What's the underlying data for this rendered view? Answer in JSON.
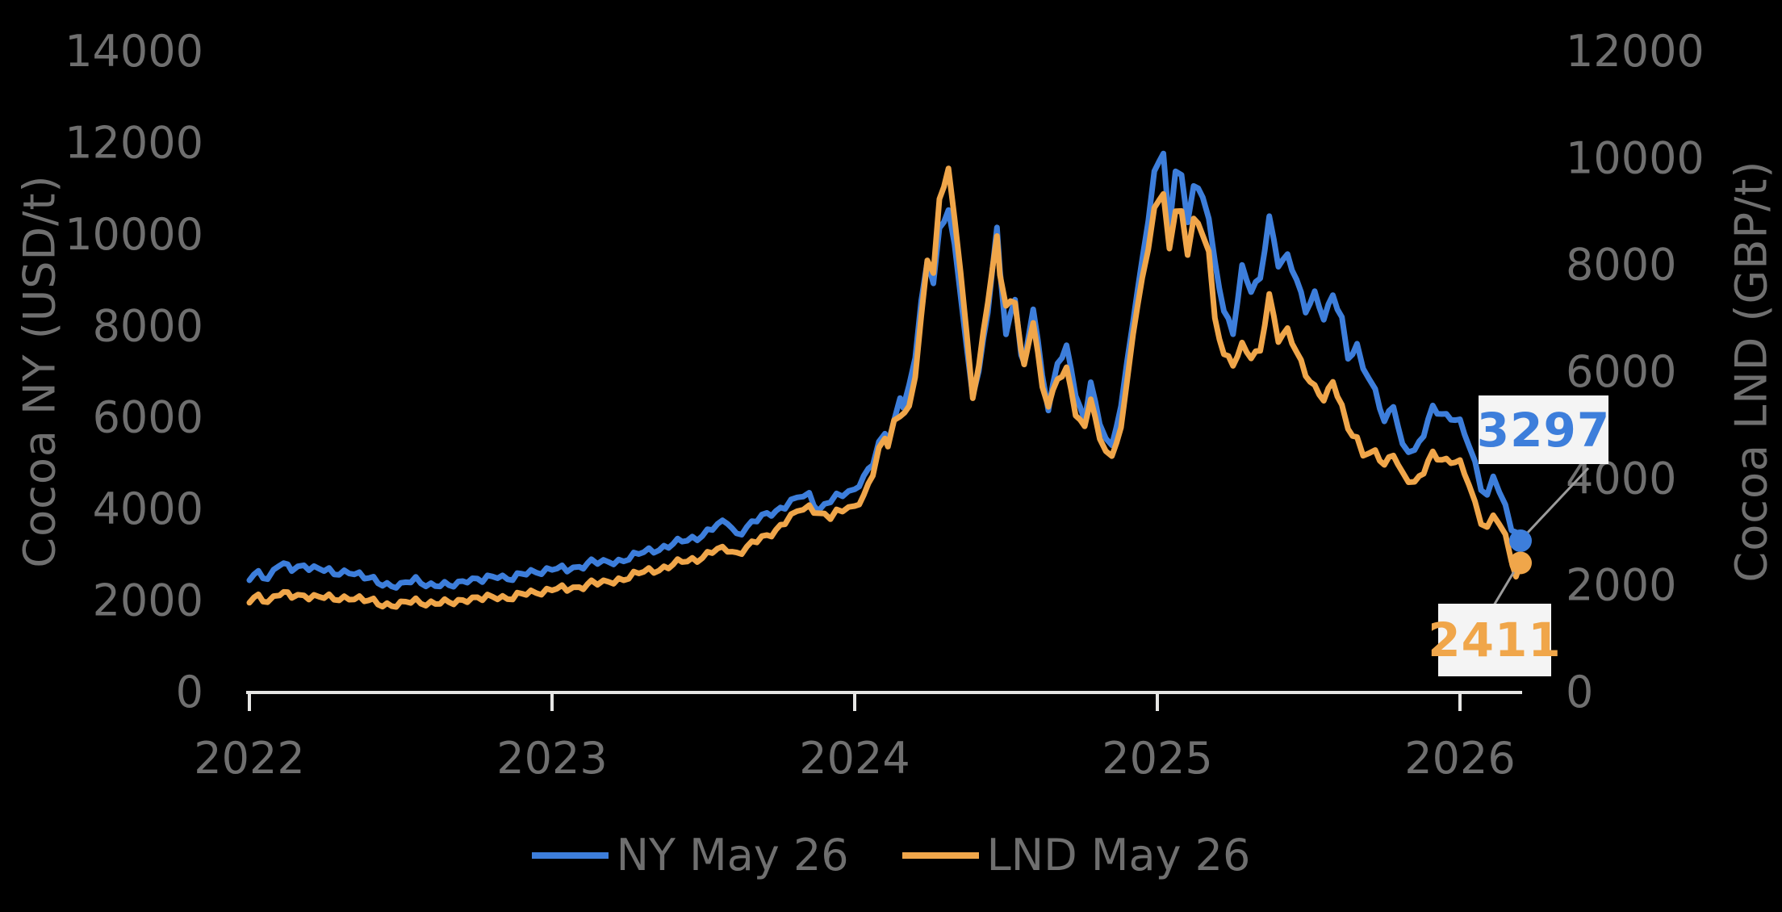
{
  "chart_data": {
    "type": "line",
    "background": "#000000",
    "grid": false,
    "legend_position": "bottom",
    "left_axis": {
      "label": "Cocoa NY (USD/t)",
      "min": 0,
      "max": 14000,
      "ticks": [
        0,
        2000,
        4000,
        6000,
        8000,
        10000,
        12000,
        14000
      ]
    },
    "right_axis": {
      "label": "Cocoa LND (GBP/t)",
      "min": 0,
      "max": 12000,
      "ticks": [
        0,
        2000,
        4000,
        6000,
        8000,
        10000,
        12000
      ]
    },
    "x_axis": {
      "min": 2022.0,
      "max": 2026.2,
      "ticks": [
        2022,
        2023,
        2024,
        2025,
        2026
      ]
    },
    "series": [
      {
        "name": "NY May 26",
        "axis": "left",
        "color": "#3d7edb",
        "last_value": 3297,
        "points": [
          [
            2022.0,
            2450
          ],
          [
            2022.03,
            2580
          ],
          [
            2022.06,
            2510
          ],
          [
            2022.1,
            2810
          ],
          [
            2022.14,
            2640
          ],
          [
            2022.18,
            2780
          ],
          [
            2022.23,
            2690
          ],
          [
            2022.28,
            2560
          ],
          [
            2022.33,
            2660
          ],
          [
            2022.38,
            2480
          ],
          [
            2022.44,
            2380
          ],
          [
            2022.5,
            2300
          ],
          [
            2022.55,
            2450
          ],
          [
            2022.6,
            2340
          ],
          [
            2022.66,
            2290
          ],
          [
            2022.72,
            2480
          ],
          [
            2022.77,
            2410
          ],
          [
            2022.82,
            2550
          ],
          [
            2022.87,
            2480
          ],
          [
            2022.93,
            2600
          ],
          [
            2023.0,
            2700
          ],
          [
            2023.05,
            2640
          ],
          [
            2023.09,
            2760
          ],
          [
            2023.13,
            2840
          ],
          [
            2023.17,
            2790
          ],
          [
            2023.22,
            2870
          ],
          [
            2023.27,
            2960
          ],
          [
            2023.32,
            3070
          ],
          [
            2023.37,
            3170
          ],
          [
            2023.43,
            3270
          ],
          [
            2023.48,
            3390
          ],
          [
            2023.53,
            3560
          ],
          [
            2023.58,
            3720
          ],
          [
            2023.61,
            3450
          ],
          [
            2023.66,
            3660
          ],
          [
            2023.71,
            3880
          ],
          [
            2023.77,
            4060
          ],
          [
            2023.81,
            4210
          ],
          [
            2023.85,
            4320
          ],
          [
            2023.88,
            3990
          ],
          [
            2023.92,
            4160
          ],
          [
            2023.96,
            4300
          ],
          [
            2024.0,
            4460
          ],
          [
            2024.03,
            4680
          ],
          [
            2024.06,
            4970
          ],
          [
            2024.08,
            5380
          ],
          [
            2024.1,
            5670
          ],
          [
            2024.11,
            5490
          ],
          [
            2024.13,
            5910
          ],
          [
            2024.15,
            6480
          ],
          [
            2024.16,
            6260
          ],
          [
            2024.18,
            6610
          ],
          [
            2024.2,
            7300
          ],
          [
            2024.22,
            8500
          ],
          [
            2024.24,
            9430
          ],
          [
            2024.26,
            8990
          ],
          [
            2024.28,
            10100
          ],
          [
            2024.31,
            10500
          ],
          [
            2024.33,
            9700
          ],
          [
            2024.35,
            8700
          ],
          [
            2024.37,
            7500
          ],
          [
            2024.39,
            6540
          ],
          [
            2024.41,
            7000
          ],
          [
            2024.44,
            8300
          ],
          [
            2024.47,
            10060
          ],
          [
            2024.48,
            9200
          ],
          [
            2024.5,
            7860
          ],
          [
            2024.53,
            8620
          ],
          [
            2024.55,
            7360
          ],
          [
            2024.56,
            7110
          ],
          [
            2024.59,
            8370
          ],
          [
            2024.62,
            6900
          ],
          [
            2024.64,
            6230
          ],
          [
            2024.67,
            7180
          ],
          [
            2024.7,
            7490
          ],
          [
            2024.73,
            6500
          ],
          [
            2024.76,
            5910
          ],
          [
            2024.78,
            6860
          ],
          [
            2024.81,
            5800
          ],
          [
            2024.85,
            5290
          ],
          [
            2024.88,
            6300
          ],
          [
            2024.9,
            7200
          ],
          [
            2024.92,
            8180
          ],
          [
            2024.95,
            9370
          ],
          [
            2024.97,
            10300
          ],
          [
            2024.99,
            11300
          ],
          [
            2025.02,
            11850
          ],
          [
            2025.04,
            10100
          ],
          [
            2025.06,
            11420
          ],
          [
            2025.08,
            11240
          ],
          [
            2025.1,
            10200
          ],
          [
            2025.12,
            11070
          ],
          [
            2025.15,
            10840
          ],
          [
            2025.17,
            10400
          ],
          [
            2025.19,
            9370
          ],
          [
            2025.22,
            8280
          ],
          [
            2025.25,
            7830
          ],
          [
            2025.28,
            9300
          ],
          [
            2025.31,
            8800
          ],
          [
            2025.34,
            8990
          ],
          [
            2025.37,
            10320
          ],
          [
            2025.4,
            9370
          ],
          [
            2025.43,
            9550
          ],
          [
            2025.46,
            8990
          ],
          [
            2025.49,
            8280
          ],
          [
            2025.52,
            8700
          ],
          [
            2025.55,
            8210
          ],
          [
            2025.58,
            8660
          ],
          [
            2025.61,
            8100
          ],
          [
            2025.63,
            7260
          ],
          [
            2025.66,
            7580
          ],
          [
            2025.68,
            7130
          ],
          [
            2025.72,
            6560
          ],
          [
            2025.75,
            5850
          ],
          [
            2025.78,
            6290
          ],
          [
            2025.81,
            5400
          ],
          [
            2025.85,
            5210
          ],
          [
            2025.88,
            5600
          ],
          [
            2025.91,
            6230
          ],
          [
            2025.94,
            6100
          ],
          [
            2025.97,
            5980
          ],
          [
            2026.0,
            5850
          ],
          [
            2026.03,
            5400
          ],
          [
            2026.05,
            5010
          ],
          [
            2026.07,
            4500
          ],
          [
            2026.09,
            4260
          ],
          [
            2026.11,
            4700
          ],
          [
            2026.13,
            4320
          ],
          [
            2026.15,
            4030
          ],
          [
            2026.17,
            3600
          ],
          [
            2026.19,
            3450
          ],
          [
            2026.2,
            3297
          ]
        ]
      },
      {
        "name": "LND May 26",
        "axis": "right",
        "color": "#f0a64a",
        "last_value": 2411,
        "points": [
          [
            2022.0,
            1680
          ],
          [
            2022.03,
            1770
          ],
          [
            2022.06,
            1720
          ],
          [
            2022.1,
            1850
          ],
          [
            2022.14,
            1760
          ],
          [
            2022.18,
            1820
          ],
          [
            2022.23,
            1780
          ],
          [
            2022.28,
            1720
          ],
          [
            2022.33,
            1790
          ],
          [
            2022.38,
            1700
          ],
          [
            2022.44,
            1650
          ],
          [
            2022.5,
            1625
          ],
          [
            2022.55,
            1700
          ],
          [
            2022.6,
            1665
          ],
          [
            2022.66,
            1645
          ],
          [
            2022.72,
            1760
          ],
          [
            2022.77,
            1725
          ],
          [
            2022.82,
            1790
          ],
          [
            2022.87,
            1765
          ],
          [
            2022.93,
            1845
          ],
          [
            2023.0,
            1930
          ],
          [
            2023.05,
            1900
          ],
          [
            2023.09,
            1985
          ],
          [
            2023.13,
            2040
          ],
          [
            2023.17,
            2010
          ],
          [
            2023.22,
            2110
          ],
          [
            2023.27,
            2180
          ],
          [
            2023.32,
            2260
          ],
          [
            2023.37,
            2330
          ],
          [
            2023.43,
            2420
          ],
          [
            2023.48,
            2500
          ],
          [
            2023.53,
            2620
          ],
          [
            2023.58,
            2665
          ],
          [
            2023.61,
            2600
          ],
          [
            2023.66,
            2760
          ],
          [
            2023.71,
            2910
          ],
          [
            2023.77,
            3190
          ],
          [
            2023.81,
            3350
          ],
          [
            2023.85,
            3470
          ],
          [
            2023.88,
            3380
          ],
          [
            2023.92,
            3250
          ],
          [
            2023.96,
            3400
          ],
          [
            2024.0,
            3510
          ],
          [
            2024.03,
            3650
          ],
          [
            2024.06,
            4060
          ],
          [
            2024.08,
            4500
          ],
          [
            2024.1,
            4770
          ],
          [
            2024.11,
            4660
          ],
          [
            2024.13,
            5070
          ],
          [
            2024.15,
            5210
          ],
          [
            2024.18,
            5270
          ],
          [
            2024.2,
            5900
          ],
          [
            2024.22,
            7000
          ],
          [
            2024.24,
            8100
          ],
          [
            2024.26,
            7900
          ],
          [
            2024.28,
            9200
          ],
          [
            2024.31,
            9780
          ],
          [
            2024.33,
            8800
          ],
          [
            2024.35,
            7900
          ],
          [
            2024.37,
            6700
          ],
          [
            2024.39,
            5570
          ],
          [
            2024.41,
            6100
          ],
          [
            2024.44,
            7300
          ],
          [
            2024.47,
            8460
          ],
          [
            2024.48,
            7800
          ],
          [
            2024.5,
            7270
          ],
          [
            2024.53,
            7330
          ],
          [
            2024.55,
            6400
          ],
          [
            2024.56,
            6060
          ],
          [
            2024.59,
            6920
          ],
          [
            2024.62,
            5700
          ],
          [
            2024.64,
            5410
          ],
          [
            2024.67,
            5860
          ],
          [
            2024.7,
            6010
          ],
          [
            2024.73,
            5200
          ],
          [
            2024.76,
            4960
          ],
          [
            2024.78,
            5560
          ],
          [
            2024.81,
            4700
          ],
          [
            2024.85,
            4330
          ],
          [
            2024.88,
            5000
          ],
          [
            2024.9,
            5800
          ],
          [
            2024.92,
            6770
          ],
          [
            2024.95,
            7680
          ],
          [
            2024.97,
            8300
          ],
          [
            2024.99,
            9000
          ],
          [
            2025.02,
            9400
          ],
          [
            2025.04,
            8280
          ],
          [
            2025.06,
            9040
          ],
          [
            2025.08,
            8960
          ],
          [
            2025.1,
            8130
          ],
          [
            2025.12,
            8880
          ],
          [
            2025.15,
            8580
          ],
          [
            2025.17,
            8300
          ],
          [
            2025.19,
            6960
          ],
          [
            2025.22,
            6290
          ],
          [
            2025.25,
            6120
          ],
          [
            2025.28,
            6520
          ],
          [
            2025.31,
            6300
          ],
          [
            2025.34,
            6350
          ],
          [
            2025.37,
            7390
          ],
          [
            2025.4,
            6620
          ],
          [
            2025.43,
            6800
          ],
          [
            2025.46,
            6350
          ],
          [
            2025.49,
            5910
          ],
          [
            2025.52,
            5700
          ],
          [
            2025.55,
            5520
          ],
          [
            2025.58,
            5800
          ],
          [
            2025.61,
            5300
          ],
          [
            2025.63,
            4910
          ],
          [
            2025.66,
            4750
          ],
          [
            2025.68,
            4480
          ],
          [
            2025.72,
            4480
          ],
          [
            2025.75,
            4200
          ],
          [
            2025.78,
            4480
          ],
          [
            2025.81,
            4100
          ],
          [
            2025.85,
            3870
          ],
          [
            2025.88,
            4100
          ],
          [
            2025.91,
            4480
          ],
          [
            2025.94,
            4370
          ],
          [
            2025.97,
            4310
          ],
          [
            2026.0,
            4250
          ],
          [
            2026.03,
            3900
          ],
          [
            2026.05,
            3540
          ],
          [
            2026.07,
            3220
          ],
          [
            2026.09,
            3050
          ],
          [
            2026.11,
            3300
          ],
          [
            2026.13,
            3100
          ],
          [
            2026.15,
            2900
          ],
          [
            2026.17,
            2500
          ],
          [
            2026.185,
            2150
          ],
          [
            2026.2,
            2411
          ]
        ]
      }
    ],
    "annotations": [
      {
        "series": "NY May 26",
        "text": "3297",
        "color": "#3d7edb"
      },
      {
        "series": "LND May 26",
        "text": "2411",
        "color": "#f0a64a"
      }
    ]
  },
  "axes": {
    "left_title": "Cocoa NY (USD/t)",
    "right_title": "Cocoa LND (GBP/t)"
  },
  "callouts": {
    "ny": "3297",
    "lnd": "2411"
  },
  "legend": {
    "items": [
      {
        "label": "NY May 26",
        "color": "#3d7edb"
      },
      {
        "label": "LND May 26",
        "color": "#f0a64a"
      }
    ]
  },
  "colors": {
    "background": "#000000",
    "axis_text": "#6f6f6f",
    "axis_line": "#e6e6e4",
    "leader_line": "#9b9b9b",
    "callout_bg": "#f4f4f4",
    "ny": "#3d7edb",
    "lnd": "#f0a64a"
  }
}
